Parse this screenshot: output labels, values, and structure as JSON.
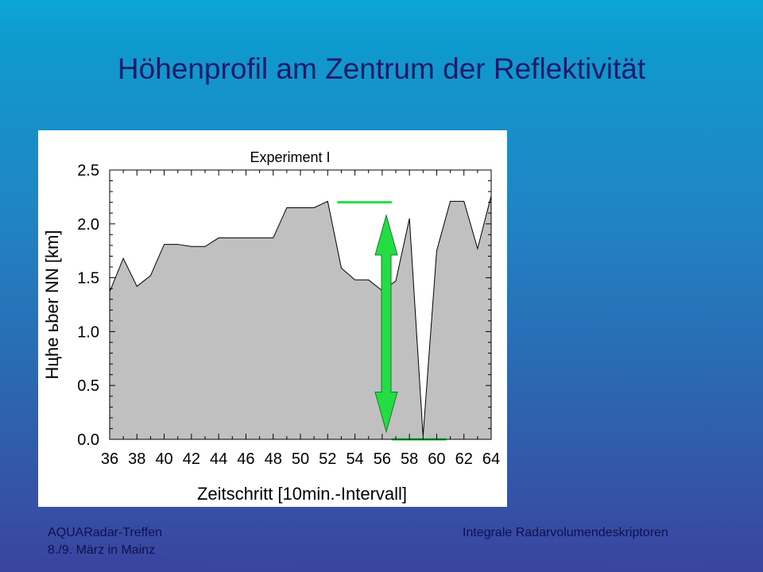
{
  "slide": {
    "title": "Höhenprofil am Zentrum der Reflektivität",
    "footer_left_line1": "AQUARadar-Treffen",
    "footer_left_line2": "8./9. März in Mainz",
    "footer_right": "Integrale Radarvolumendeskriptoren"
  },
  "chart_data": {
    "type": "area",
    "title": "Experiment I",
    "xlabel": "Zeitschritt [10min.-Intervall]",
    "ylabel": "Нцhe ьber NN [km]",
    "xlim": [
      36,
      64
    ],
    "ylim": [
      0,
      2.5
    ],
    "xticks": [
      "36",
      "38",
      "40",
      "42",
      "44",
      "46",
      "48",
      "50",
      "52",
      "54",
      "56",
      "58",
      "60",
      "62",
      "64"
    ],
    "yticks": [
      "0.0",
      "0.5",
      "1.0",
      "1.5",
      "2.0",
      "2.5"
    ],
    "grid": false,
    "fill_color": "#c0c0c0",
    "annotation_color": "#22dd44",
    "x": [
      36,
      37,
      38,
      39,
      40,
      41,
      42,
      43,
      44,
      45,
      46,
      47,
      48,
      49,
      50,
      51,
      52,
      53,
      54,
      55,
      56,
      57,
      58,
      59,
      60,
      61,
      62,
      63,
      64
    ],
    "values": [
      1.37,
      1.68,
      1.42,
      1.52,
      1.81,
      1.81,
      1.79,
      1.79,
      1.87,
      1.87,
      1.87,
      1.87,
      1.87,
      2.15,
      2.15,
      2.15,
      2.21,
      1.59,
      1.48,
      1.48,
      1.38,
      1.47,
      2.05,
      0.03,
      1.75,
      2.21,
      2.21,
      1.77,
      2.26
    ],
    "annotations": {
      "top_bar": {
        "x0": 52.7,
        "x1": 56.7,
        "y": 2.2
      },
      "bottom_bar": {
        "x0": 56.7,
        "x1": 60.7,
        "y": 0.0
      },
      "double_arrow": {
        "x": 56.3,
        "y_top": 2.08,
        "y_bottom": 0.07
      }
    }
  }
}
